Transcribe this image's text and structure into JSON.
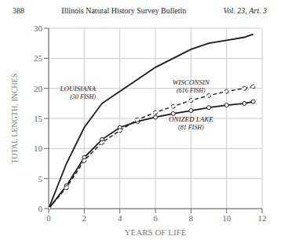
{
  "chart_data": {
    "type": "line",
    "title": "Illinois Natural History Survey Bulletin",
    "annotations": [
      "388",
      "Vol. 23, Art. 3"
    ],
    "x_label": "YEARS   OF   LIFE",
    "y_label": "TOTAL  LENGTH,  INCHES",
    "xlim": [
      0,
      12
    ],
    "ylim": [
      0,
      30
    ],
    "xticks": [
      0,
      2,
      4,
      6,
      8,
      10,
      12
    ],
    "yticks": [
      0,
      5,
      10,
      15,
      20,
      25,
      30
    ],
    "grid": true,
    "x": [
      0,
      1,
      2,
      3,
      4,
      5,
      6,
      7,
      8,
      9,
      10,
      11,
      11.5
    ],
    "series": [
      {
        "name": "LOUISIANA",
        "annotation": "(30 FISH)",
        "color": "#1a1a1a",
        "line_style": "solid",
        "marker": "none",
        "values": [
          0,
          7.5,
          13.5,
          17.5,
          19.5,
          21.5,
          23.5,
          25.0,
          26.5,
          27.5,
          28.0,
          28.5,
          29.0
        ]
      },
      {
        "name": "ONIZED LAKE",
        "annotation": "(81 FISH)",
        "color": "#1a1a1a",
        "line_style": "solid",
        "marker": "circle",
        "values": [
          0,
          3.8,
          8.5,
          11.5,
          13.5,
          14.5,
          15.2,
          15.8,
          16.3,
          16.8,
          17.2,
          17.5,
          17.8
        ]
      },
      {
        "name": "WISCONSIN",
        "annotation": "(616 FISH)",
        "color": "#1a1a1a",
        "line_style": "dashed",
        "marker": "circle",
        "values": [
          0,
          3.5,
          8.0,
          11.0,
          13.0,
          14.8,
          16.0,
          17.0,
          18.0,
          18.8,
          19.5,
          20.0,
          20.3
        ]
      }
    ]
  }
}
